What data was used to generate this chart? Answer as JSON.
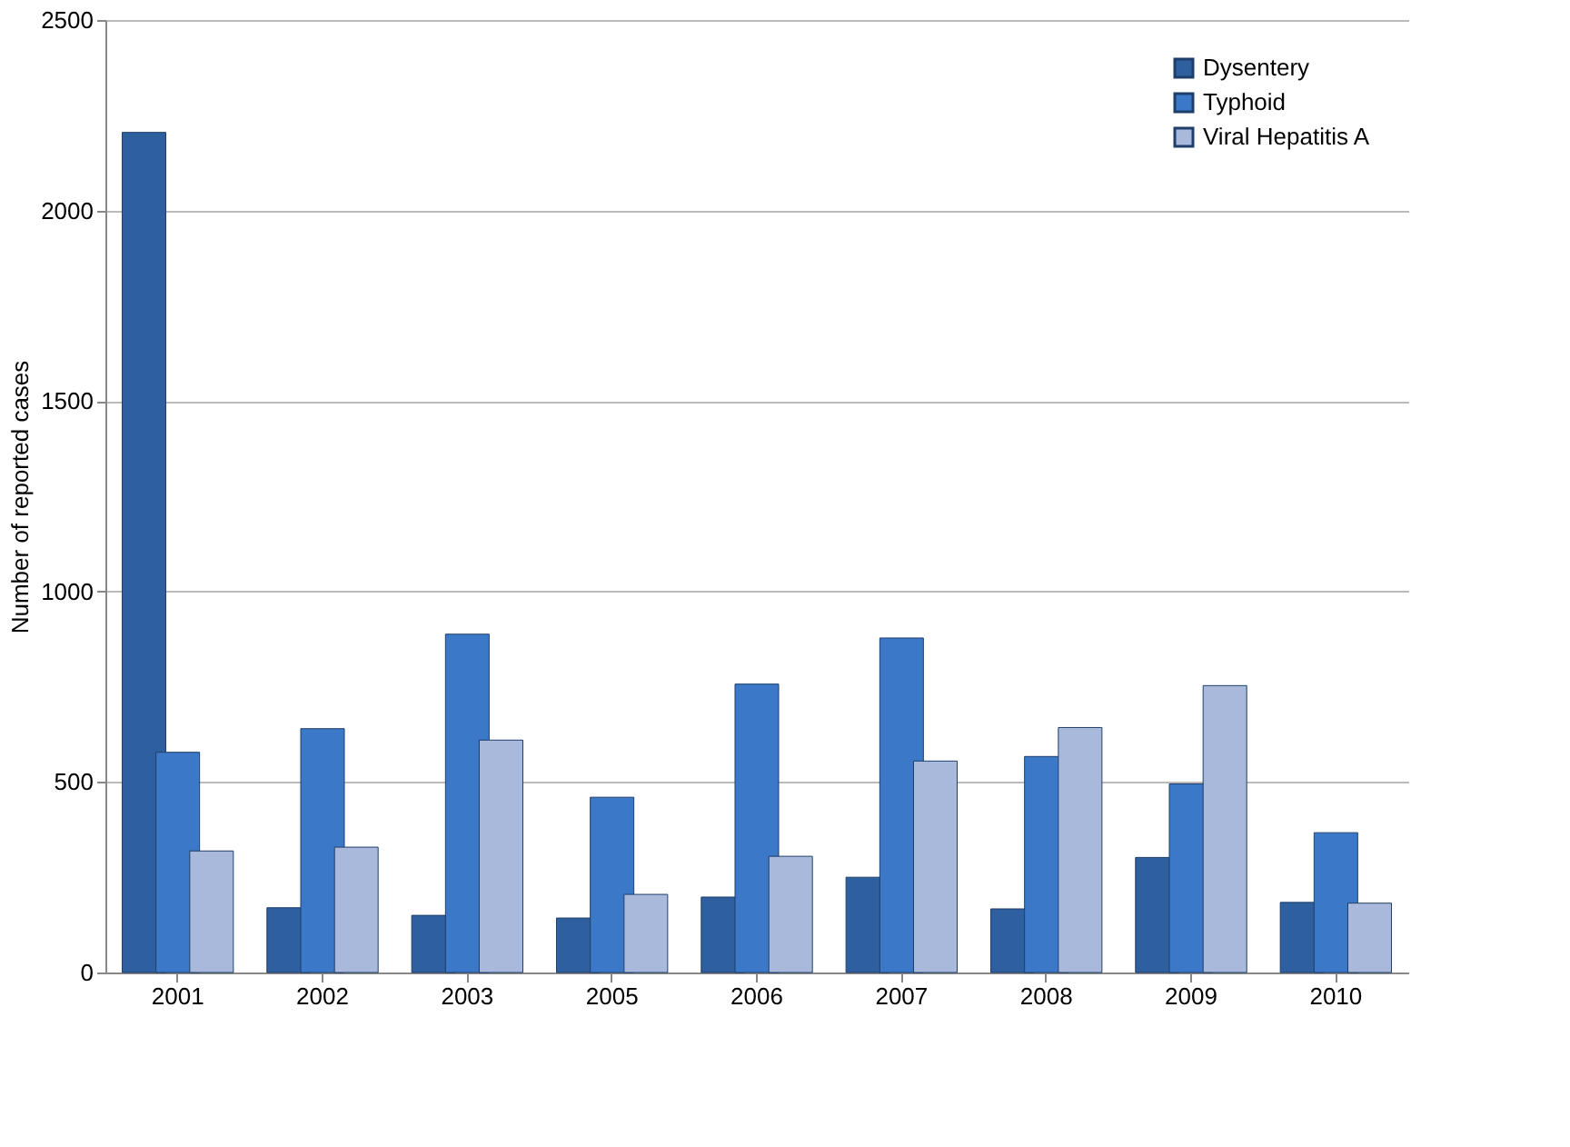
{
  "chart_data": {
    "type": "bar",
    "ylabel": "Number of reported cases",
    "categories": [
      "2001",
      "2002",
      "2003",
      "2005",
      "2006",
      "2007",
      "2008",
      "2009",
      "2010"
    ],
    "series": [
      {
        "name": "Dysentery",
        "color": "#2e5f9e",
        "values": [
          2205,
          170,
          150,
          143,
          198,
          250,
          167,
          302,
          184
        ]
      },
      {
        "name": "Typhoid",
        "color": "#3c78c8",
        "values": [
          578,
          640,
          888,
          460,
          757,
          878,
          567,
          495,
          367
        ]
      },
      {
        "name": "Viral Hepatitis A",
        "color": "#a9b9dc",
        "values": [
          319,
          329,
          610,
          205,
          305,
          555,
          643,
          753,
          182
        ]
      }
    ],
    "ylim": [
      0,
      2500
    ],
    "yticks": [
      0,
      500,
      1000,
      1500,
      2000,
      2500
    ],
    "grid": "y",
    "legend": "top right"
  }
}
